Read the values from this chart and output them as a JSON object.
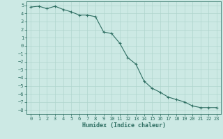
{
  "x": [
    0,
    1,
    2,
    3,
    4,
    5,
    6,
    7,
    8,
    9,
    10,
    11,
    12,
    13,
    14,
    15,
    16,
    17,
    18,
    19,
    20,
    21,
    22,
    23
  ],
  "y": [
    4.8,
    4.9,
    4.6,
    4.9,
    4.5,
    4.2,
    3.8,
    3.8,
    3.6,
    1.7,
    1.5,
    0.3,
    -1.5,
    -2.3,
    -4.4,
    -5.3,
    -5.8,
    -6.4,
    -6.7,
    -7.0,
    -7.5,
    -7.7,
    -7.7,
    -7.7
  ],
  "line_color": "#2e6e62",
  "bg_color": "#cce9e4",
  "grid_color": "#b0d5ce",
  "xlabel": "Humidex (Indice chaleur)",
  "xlabel_fontsize": 6,
  "ylim": [
    -8.5,
    5.5
  ],
  "xlim": [
    -0.5,
    23.5
  ],
  "yticks": [
    5,
    4,
    3,
    2,
    1,
    0,
    -1,
    -2,
    -3,
    -4,
    -5,
    -6,
    -7,
    -8
  ],
  "xticks": [
    0,
    1,
    2,
    3,
    4,
    5,
    6,
    7,
    8,
    9,
    10,
    11,
    12,
    13,
    14,
    15,
    16,
    17,
    18,
    19,
    20,
    21,
    22,
    23
  ],
  "tick_fontsize": 5,
  "marker": "+",
  "markersize": 3,
  "linewidth": 0.8
}
